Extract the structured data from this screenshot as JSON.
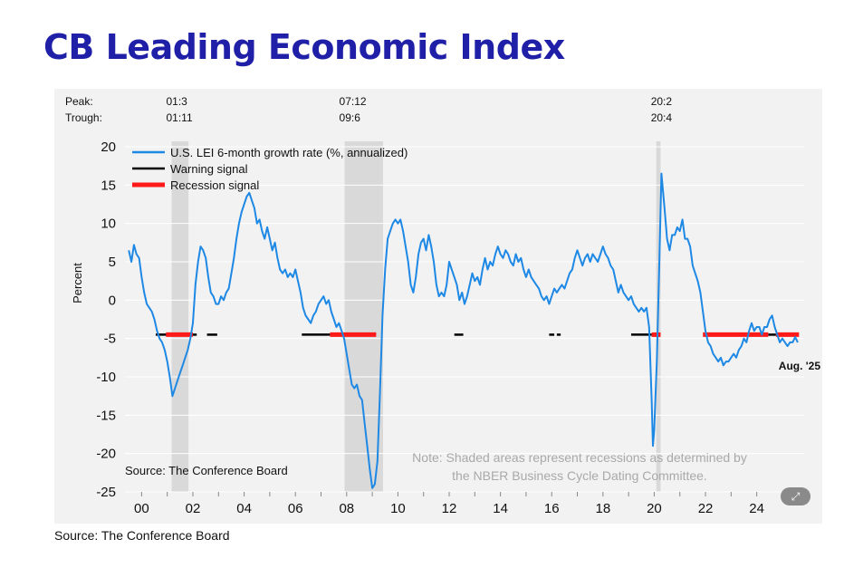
{
  "title": "CB Leading Economic Index",
  "footer_source": "Source: The Conference Board",
  "colors": {
    "title": "#1f1fa8",
    "series": "#1e88e5",
    "warning": "#000000",
    "recession": "#ff1a1a",
    "shade": "#d9d9d9",
    "panel": "#f2f2f2"
  },
  "chart_data": {
    "type": "line",
    "title": "",
    "ylabel": "Percent",
    "xlabel": "",
    "ylim": [
      -25,
      20
    ],
    "xlim": [
      1999.35,
      2025.85
    ],
    "yticks": [
      20,
      15,
      10,
      5,
      0,
      -5,
      -10,
      -15,
      -20,
      -25
    ],
    "xticks": [
      {
        "value": 2000,
        "label": "00"
      },
      {
        "value": 2002,
        "label": "02"
      },
      {
        "value": 2004,
        "label": "04"
      },
      {
        "value": 2006,
        "label": "06"
      },
      {
        "value": 2008,
        "label": "08"
      },
      {
        "value": 2010,
        "label": "10"
      },
      {
        "value": 2012,
        "label": "12"
      },
      {
        "value": 2014,
        "label": "14"
      },
      {
        "value": 2016,
        "label": "16"
      },
      {
        "value": 2018,
        "label": "18"
      },
      {
        "value": 2020,
        "label": "20"
      },
      {
        "value": 2022,
        "label": "22"
      },
      {
        "value": 2024,
        "label": "24"
      }
    ],
    "peak_label": "Peak:",
    "trough_label": "Trough:",
    "recessions": [
      {
        "start": 2001.17,
        "end": 2001.83,
        "peak": "01:3",
        "trough": "01:11"
      },
      {
        "start": 2007.92,
        "end": 2009.42,
        "peak": "07:12",
        "trough": "09:6"
      },
      {
        "start": 2020.08,
        "end": 2020.25,
        "peak": "20:2",
        "trough": "20:4"
      }
    ],
    "legend": [
      {
        "label": "U.S. LEI 6-month growth rate (%, annualized)",
        "kind": "series"
      },
      {
        "label": "Warning signal",
        "kind": "warning"
      },
      {
        "label": "Recession signal",
        "kind": "recession"
      }
    ],
    "series": [
      {
        "name": "U.S. LEI 6-month growth rate (%, annualized)",
        "points": [
          [
            1999.5,
            6.5
          ],
          [
            1999.6,
            5.0
          ],
          [
            1999.7,
            7.2
          ],
          [
            1999.8,
            6.0
          ],
          [
            1999.9,
            5.5
          ],
          [
            2000.0,
            3.0
          ],
          [
            2000.1,
            1.0
          ],
          [
            2000.2,
            -0.5
          ],
          [
            2000.3,
            -1.0
          ],
          [
            2000.4,
            -1.5
          ],
          [
            2000.5,
            -2.5
          ],
          [
            2000.6,
            -4.0
          ],
          [
            2000.7,
            -5.0
          ],
          [
            2000.8,
            -5.5
          ],
          [
            2000.9,
            -6.5
          ],
          [
            2001.0,
            -8.0
          ],
          [
            2001.1,
            -10.0
          ],
          [
            2001.2,
            -12.5
          ],
          [
            2001.3,
            -11.5
          ],
          [
            2001.4,
            -10.5
          ],
          [
            2001.5,
            -9.5
          ],
          [
            2001.6,
            -8.5
          ],
          [
            2001.7,
            -7.5
          ],
          [
            2001.8,
            -6.5
          ],
          [
            2001.9,
            -5.0
          ],
          [
            2002.0,
            -3.0
          ],
          [
            2002.1,
            2.0
          ],
          [
            2002.2,
            5.0
          ],
          [
            2002.3,
            7.0
          ],
          [
            2002.4,
            6.5
          ],
          [
            2002.5,
            5.5
          ],
          [
            2002.6,
            3.0
          ],
          [
            2002.7,
            1.0
          ],
          [
            2002.8,
            0.5
          ],
          [
            2002.9,
            -0.5
          ],
          [
            2003.0,
            -0.5
          ],
          [
            2003.1,
            0.5
          ],
          [
            2003.2,
            0.0
          ],
          [
            2003.3,
            1.0
          ],
          [
            2003.4,
            1.5
          ],
          [
            2003.5,
            3.5
          ],
          [
            2003.6,
            5.5
          ],
          [
            2003.7,
            8.0
          ],
          [
            2003.8,
            10.0
          ],
          [
            2003.9,
            11.5
          ],
          [
            2004.0,
            12.5
          ],
          [
            2004.1,
            13.5
          ],
          [
            2004.2,
            14.0
          ],
          [
            2004.3,
            13.0
          ],
          [
            2004.4,
            12.0
          ],
          [
            2004.5,
            10.0
          ],
          [
            2004.6,
            10.5
          ],
          [
            2004.7,
            9.0
          ],
          [
            2004.8,
            8.0
          ],
          [
            2004.9,
            9.5
          ],
          [
            2005.0,
            8.0
          ],
          [
            2005.1,
            6.5
          ],
          [
            2005.2,
            7.5
          ],
          [
            2005.3,
            5.5
          ],
          [
            2005.4,
            4.0
          ],
          [
            2005.5,
            3.5
          ],
          [
            2005.6,
            4.0
          ],
          [
            2005.7,
            3.0
          ],
          [
            2005.8,
            3.5
          ],
          [
            2005.9,
            3.0
          ],
          [
            2006.0,
            4.0
          ],
          [
            2006.1,
            2.5
          ],
          [
            2006.2,
            1.0
          ],
          [
            2006.3,
            -1.0
          ],
          [
            2006.4,
            -2.0
          ],
          [
            2006.5,
            -2.5
          ],
          [
            2006.6,
            -3.0
          ],
          [
            2006.7,
            -2.0
          ],
          [
            2006.8,
            -1.5
          ],
          [
            2006.9,
            -0.5
          ],
          [
            2007.0,
            0.0
          ],
          [
            2007.1,
            0.5
          ],
          [
            2007.2,
            -0.5
          ],
          [
            2007.3,
            0.0
          ],
          [
            2007.4,
            -1.5
          ],
          [
            2007.5,
            -2.5
          ],
          [
            2007.6,
            -3.5
          ],
          [
            2007.7,
            -3.0
          ],
          [
            2007.8,
            -4.0
          ],
          [
            2007.9,
            -5.0
          ],
          [
            2008.0,
            -7.0
          ],
          [
            2008.1,
            -9.0
          ],
          [
            2008.2,
            -11.0
          ],
          [
            2008.3,
            -11.5
          ],
          [
            2008.4,
            -11.0
          ],
          [
            2008.5,
            -12.5
          ],
          [
            2008.6,
            -13.0
          ],
          [
            2008.7,
            -16.0
          ],
          [
            2008.8,
            -19.0
          ],
          [
            2008.9,
            -22.0
          ],
          [
            2009.0,
            -24.5
          ],
          [
            2009.1,
            -24.0
          ],
          [
            2009.2,
            -21.0
          ],
          [
            2009.3,
            -12.0
          ],
          [
            2009.4,
            -2.0
          ],
          [
            2009.5,
            4.0
          ],
          [
            2009.6,
            8.0
          ],
          [
            2009.7,
            9.0
          ],
          [
            2009.8,
            10.0
          ],
          [
            2009.9,
            10.5
          ],
          [
            2010.0,
            10.0
          ],
          [
            2010.1,
            10.5
          ],
          [
            2010.2,
            9.0
          ],
          [
            2010.3,
            7.0
          ],
          [
            2010.4,
            5.0
          ],
          [
            2010.5,
            2.0
          ],
          [
            2010.6,
            1.0
          ],
          [
            2010.7,
            3.0
          ],
          [
            2010.8,
            6.0
          ],
          [
            2010.9,
            7.5
          ],
          [
            2011.0,
            8.0
          ],
          [
            2011.1,
            6.5
          ],
          [
            2011.2,
            8.5
          ],
          [
            2011.3,
            7.0
          ],
          [
            2011.4,
            5.0
          ],
          [
            2011.5,
            2.0
          ],
          [
            2011.6,
            0.5
          ],
          [
            2011.7,
            1.0
          ],
          [
            2011.8,
            0.5
          ],
          [
            2011.9,
            2.0
          ],
          [
            2012.0,
            5.0
          ],
          [
            2012.1,
            4.0
          ],
          [
            2012.2,
            3.0
          ],
          [
            2012.3,
            2.0
          ],
          [
            2012.4,
            0.0
          ],
          [
            2012.5,
            1.0
          ],
          [
            2012.6,
            -0.5
          ],
          [
            2012.7,
            0.5
          ],
          [
            2012.8,
            2.0
          ],
          [
            2012.9,
            3.5
          ],
          [
            2013.0,
            2.5
          ],
          [
            2013.1,
            3.0
          ],
          [
            2013.2,
            2.0
          ],
          [
            2013.3,
            4.0
          ],
          [
            2013.4,
            5.5
          ],
          [
            2013.5,
            4.0
          ],
          [
            2013.6,
            5.0
          ],
          [
            2013.7,
            4.5
          ],
          [
            2013.8,
            6.0
          ],
          [
            2013.9,
            7.0
          ],
          [
            2014.0,
            6.0
          ],
          [
            2014.1,
            5.5
          ],
          [
            2014.2,
            6.5
          ],
          [
            2014.3,
            6.0
          ],
          [
            2014.4,
            5.0
          ],
          [
            2014.5,
            4.5
          ],
          [
            2014.6,
            6.0
          ],
          [
            2014.7,
            5.0
          ],
          [
            2014.8,
            5.5
          ],
          [
            2014.9,
            4.0
          ],
          [
            2015.0,
            3.0
          ],
          [
            2015.1,
            4.0
          ],
          [
            2015.2,
            3.0
          ],
          [
            2015.3,
            2.5
          ],
          [
            2015.4,
            2.0
          ],
          [
            2015.5,
            1.5
          ],
          [
            2015.6,
            0.5
          ],
          [
            2015.7,
            0.0
          ],
          [
            2015.8,
            0.5
          ],
          [
            2015.9,
            -0.5
          ],
          [
            2016.0,
            0.5
          ],
          [
            2016.1,
            1.5
          ],
          [
            2016.2,
            1.0
          ],
          [
            2016.3,
            1.5
          ],
          [
            2016.4,
            2.0
          ],
          [
            2016.5,
            1.5
          ],
          [
            2016.6,
            2.5
          ],
          [
            2016.7,
            3.5
          ],
          [
            2016.8,
            4.0
          ],
          [
            2016.9,
            5.5
          ],
          [
            2017.0,
            6.5
          ],
          [
            2017.1,
            5.5
          ],
          [
            2017.2,
            4.5
          ],
          [
            2017.3,
            5.5
          ],
          [
            2017.4,
            6.0
          ],
          [
            2017.5,
            5.0
          ],
          [
            2017.6,
            6.0
          ],
          [
            2017.7,
            5.5
          ],
          [
            2017.8,
            5.0
          ],
          [
            2017.9,
            6.0
          ],
          [
            2018.0,
            7.0
          ],
          [
            2018.1,
            6.0
          ],
          [
            2018.2,
            5.5
          ],
          [
            2018.3,
            4.5
          ],
          [
            2018.4,
            4.0
          ],
          [
            2018.5,
            2.5
          ],
          [
            2018.6,
            1.0
          ],
          [
            2018.7,
            2.0
          ],
          [
            2018.8,
            1.0
          ],
          [
            2018.9,
            0.5
          ],
          [
            2019.0,
            0.0
          ],
          [
            2019.1,
            0.5
          ],
          [
            2019.2,
            -0.5
          ],
          [
            2019.3,
            -1.0
          ],
          [
            2019.4,
            -1.5
          ],
          [
            2019.5,
            -1.0
          ],
          [
            2019.6,
            -1.5
          ],
          [
            2019.7,
            -1.0
          ],
          [
            2019.8,
            -3.5
          ],
          [
            2019.9,
            -13.0
          ],
          [
            2019.95,
            -19.0
          ],
          [
            2020.0,
            -17.0
          ],
          [
            2020.1,
            -8.0
          ],
          [
            2020.2,
            5.0
          ],
          [
            2020.28,
            16.5
          ],
          [
            2020.4,
            12.0
          ],
          [
            2020.5,
            8.0
          ],
          [
            2020.6,
            6.5
          ],
          [
            2020.7,
            8.5
          ],
          [
            2020.8,
            8.5
          ],
          [
            2020.9,
            9.5
          ],
          [
            2021.0,
            9.0
          ],
          [
            2021.1,
            10.5
          ],
          [
            2021.2,
            8.0
          ],
          [
            2021.3,
            8.0
          ],
          [
            2021.4,
            7.0
          ],
          [
            2021.5,
            4.5
          ],
          [
            2021.6,
            3.5
          ],
          [
            2021.7,
            2.5
          ],
          [
            2021.8,
            1.0
          ],
          [
            2021.9,
            -1.5
          ],
          [
            2022.0,
            -4.0
          ],
          [
            2022.1,
            -5.5
          ],
          [
            2022.2,
            -6.0
          ],
          [
            2022.3,
            -7.0
          ],
          [
            2022.4,
            -7.5
          ],
          [
            2022.5,
            -8.0
          ],
          [
            2022.6,
            -7.5
          ],
          [
            2022.7,
            -8.5
          ],
          [
            2022.8,
            -8.0
          ],
          [
            2022.9,
            -8.0
          ],
          [
            2023.0,
            -7.5
          ],
          [
            2023.1,
            -7.0
          ],
          [
            2023.2,
            -7.5
          ],
          [
            2023.3,
            -6.5
          ],
          [
            2023.4,
            -6.0
          ],
          [
            2023.5,
            -5.0
          ],
          [
            2023.6,
            -5.5
          ],
          [
            2023.7,
            -4.0
          ],
          [
            2023.8,
            -3.0
          ],
          [
            2023.9,
            -4.0
          ],
          [
            2024.0,
            -3.5
          ],
          [
            2024.1,
            -3.5
          ],
          [
            2024.2,
            -4.5
          ],
          [
            2024.3,
            -3.5
          ],
          [
            2024.4,
            -3.5
          ],
          [
            2024.5,
            -2.5
          ],
          [
            2024.6,
            -2.0
          ],
          [
            2024.7,
            -3.5
          ],
          [
            2024.8,
            -4.5
          ],
          [
            2024.9,
            -5.5
          ],
          [
            2025.0,
            -5.0
          ],
          [
            2025.1,
            -5.5
          ],
          [
            2025.2,
            -6.0
          ],
          [
            2025.3,
            -5.5
          ],
          [
            2025.4,
            -5.5
          ],
          [
            2025.5,
            -4.8
          ],
          [
            2025.6,
            -5.5
          ]
        ]
      }
    ],
    "warning_signals": [
      {
        "start": 2000.55,
        "end": 2001.17
      },
      {
        "start": 2001.83,
        "end": 2002.15
      },
      {
        "start": 2002.55,
        "end": 2002.95
      },
      {
        "start": 2006.25,
        "end": 2007.35
      },
      {
        "start": 2012.2,
        "end": 2012.55
      },
      {
        "start": 2015.9,
        "end": 2016.1
      },
      {
        "start": 2016.2,
        "end": 2016.35
      },
      {
        "start": 2019.1,
        "end": 2019.9
      },
      {
        "start": 2024.45,
        "end": 2024.75
      }
    ],
    "recession_signals": [
      {
        "start": 2000.95,
        "end": 2002.0
      },
      {
        "start": 2007.35,
        "end": 2009.15
      },
      {
        "start": 2019.9,
        "end": 2020.25
      },
      {
        "start": 2021.9,
        "end": 2024.45
      },
      {
        "start": 2024.75,
        "end": 2025.65
      }
    ],
    "signal_level": -4.5,
    "end_label": "Aug. '25",
    "inner_source": "Source: The Conference Board",
    "note_lines": [
      "Note: Shaded areas represent recessions as determined by",
      "the NBER Business Cycle Dating Committee."
    ]
  }
}
